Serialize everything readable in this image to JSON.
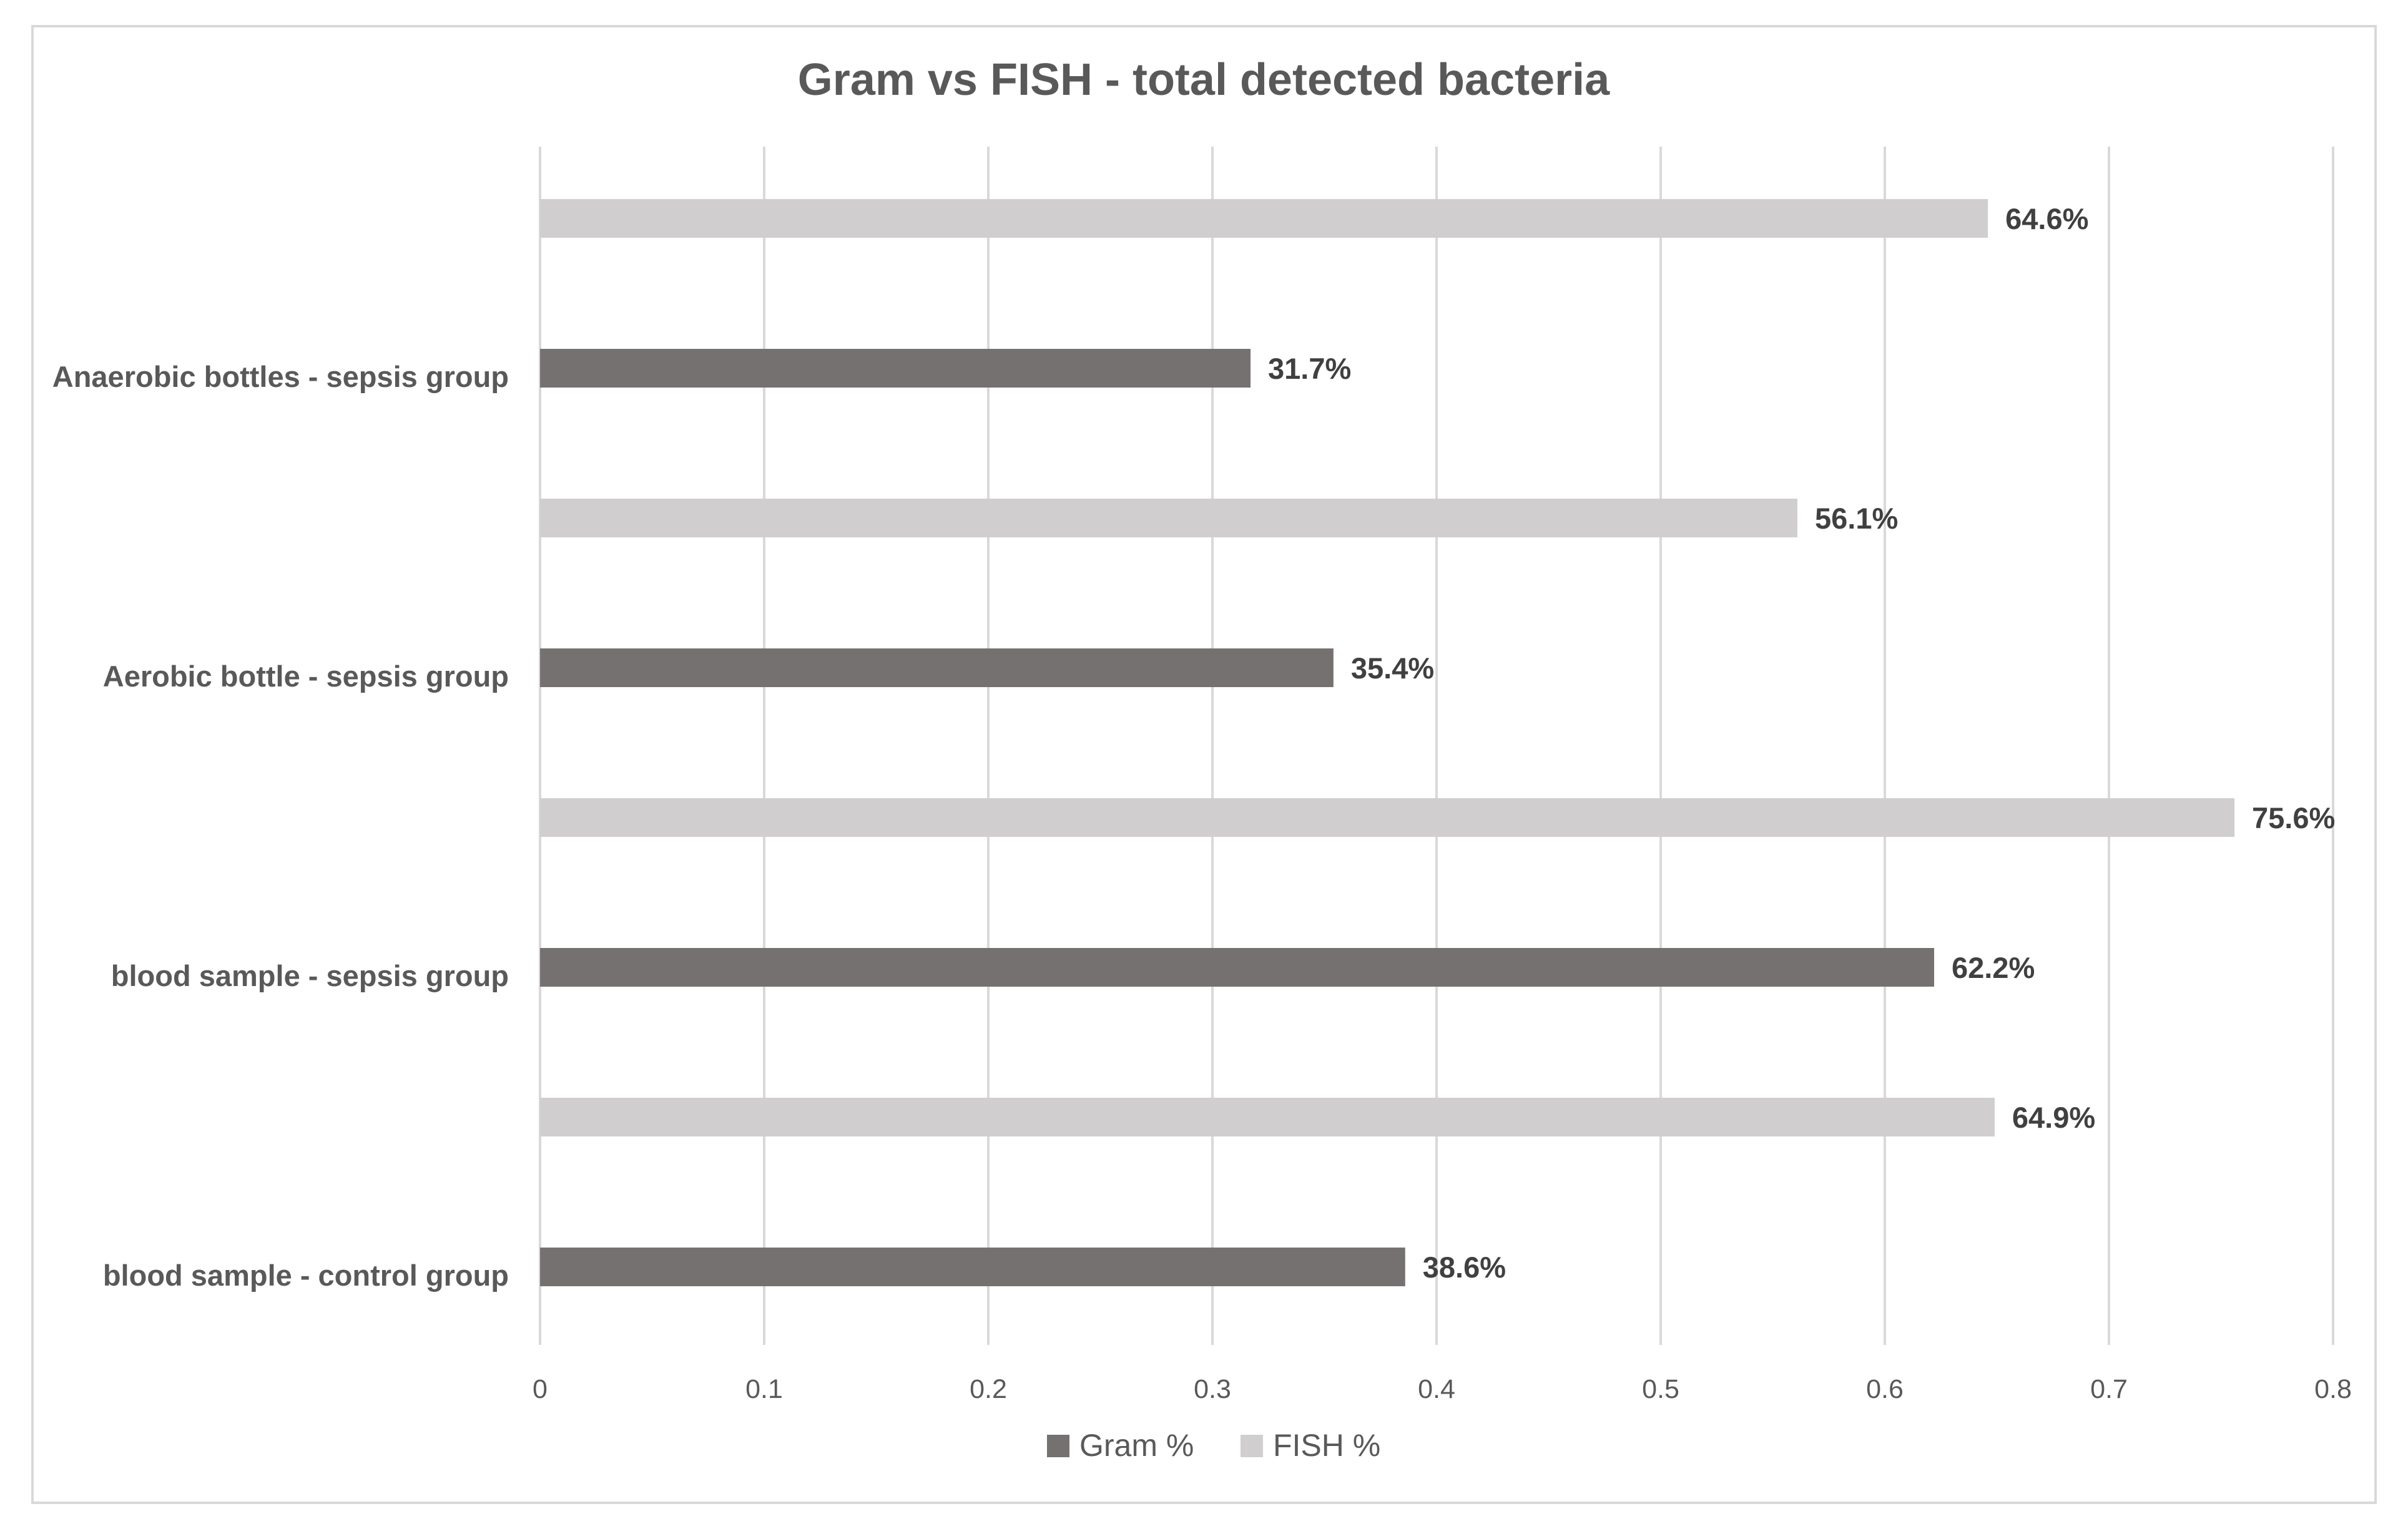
{
  "chart_data": {
    "type": "bar",
    "orientation": "horizontal",
    "title": "Gram vs FISH - total detected bacteria",
    "xlabel": "",
    "ylabel": "",
    "categories": [
      "blood sample - control group",
      "blood sample - sepsis group",
      "Aerobic bottle - sepsis group",
      "Anaerobic bottles - sepsis group"
    ],
    "series": [
      {
        "name": "Gram %",
        "color": "#767171",
        "values": [
          0.386,
          0.622,
          0.354,
          0.317
        ],
        "labels": [
          "38.6%",
          "62.2%",
          "35.4%",
          "31.7%"
        ]
      },
      {
        "name": "FISH %",
        "color": "#d0cece",
        "values": [
          0.649,
          0.756,
          0.561,
          0.646
        ],
        "labels": [
          "64.9%",
          "75.6%",
          "56.1%",
          "64.6%"
        ]
      }
    ],
    "xlim": [
      0,
      0.8
    ],
    "xticks": [
      "0",
      "0.1",
      "0.2",
      "0.3",
      "0.4",
      "0.5",
      "0.6",
      "0.7",
      "0.8"
    ],
    "grid": true,
    "legend": "bottom"
  }
}
